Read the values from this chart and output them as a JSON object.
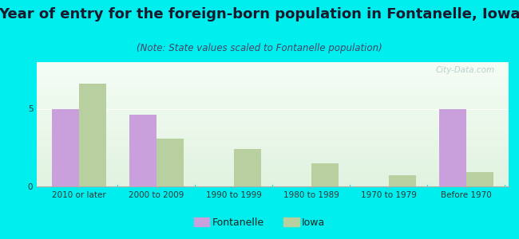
{
  "title": "Year of entry for the foreign-born population in Fontanelle, Iowa",
  "subtitle": "(Note: State values scaled to Fontanelle population)",
  "categories": [
    "2010 or later",
    "2000 to 2009",
    "1990 to 1999",
    "1980 to 1989",
    "1970 to 1979",
    "Before 1970"
  ],
  "fontanelle_values": [
    5,
    4.6,
    0,
    0,
    0,
    5
  ],
  "iowa_values": [
    6.6,
    3.1,
    2.4,
    1.5,
    0.7,
    0.9
  ],
  "fontanelle_color": "#c9a0dc",
  "iowa_color": "#b8cfa0",
  "background_color": "#00eeee",
  "bar_width": 0.35,
  "ylim": [
    0,
    8
  ],
  "yticks": [
    0,
    5
  ],
  "legend_fontanelle": "Fontanelle",
  "legend_iowa": "Iowa",
  "title_fontsize": 13,
  "subtitle_fontsize": 8.5,
  "tick_fontsize": 7.5,
  "legend_fontsize": 9,
  "watermark": "City-Data.com"
}
